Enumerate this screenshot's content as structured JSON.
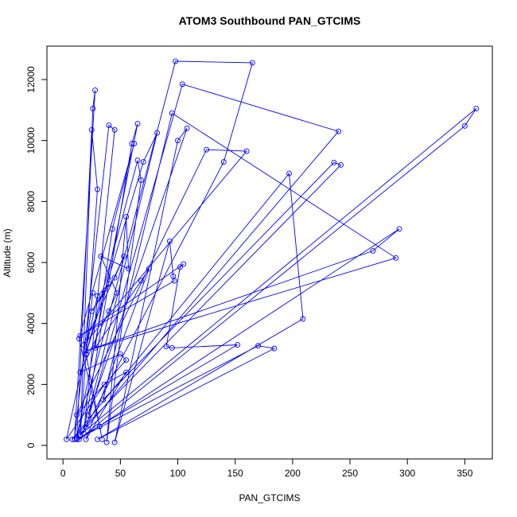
{
  "chart_data": {
    "type": "line",
    "title": "ATOM3 Southbound PAN_GTCIMS",
    "x_label": "PAN_GTCIMS",
    "y_label": "Altitude (m)",
    "color": "#0000ff",
    "markers": true,
    "x": [
      12,
      25,
      30,
      15,
      26,
      28,
      10,
      40,
      45,
      18,
      60,
      65,
      12,
      98,
      165,
      140,
      20,
      104,
      240,
      15,
      360,
      350,
      14,
      293,
      270,
      20,
      290,
      95,
      35,
      236,
      242,
      8,
      197,
      209,
      30,
      184,
      170,
      12,
      152,
      95,
      90,
      102,
      105,
      15,
      97,
      96,
      93,
      45,
      100,
      108,
      22,
      82,
      70,
      20,
      65,
      68,
      38,
      55,
      57,
      33,
      47,
      40,
      15,
      50,
      55,
      12,
      125,
      160,
      18,
      53,
      45,
      25,
      40,
      30,
      3,
      36,
      55,
      20,
      75,
      68,
      28,
      43,
      62,
      14,
      32,
      34,
      20,
      26
    ],
    "values": [
      200,
      10350,
      8400,
      300,
      11050,
      11650,
      200,
      10500,
      10350,
      400,
      9900,
      10550,
      250,
      12600,
      12550,
      9300,
      600,
      11850,
      10300,
      350,
      11050,
      10480,
      200,
      7100,
      6380,
      3100,
      6150,
      10900,
      1500,
      9280,
      9200,
      200,
      8920,
      4150,
      200,
      3180,
      3270,
      200,
      3300,
      3200,
      3250,
      5850,
      5950,
      3600,
      5400,
      5550,
      6700,
      100,
      10000,
      10400,
      1000,
      10250,
      9300,
      3000,
      9350,
      8700,
      100,
      7500,
      5800,
      6200,
      5000,
      4400,
      2400,
      3000,
      2800,
      1000,
      9700,
      9650,
      3300,
      6200,
      5500,
      4400,
      5300,
      4900,
      200,
      2000,
      2400,
      200,
      5800,
      5400,
      3200,
      7100,
      9900,
      3500,
      620,
      200,
      3000,
      5000
    ],
    "xlim": [
      -14,
      374
    ],
    "ylim": [
      -443,
      13096
    ],
    "xticks": [
      0,
      50,
      100,
      150,
      200,
      250,
      300,
      350
    ],
    "yticks": [
      0,
      2000,
      4000,
      6000,
      8000,
      10000,
      12000
    ]
  }
}
